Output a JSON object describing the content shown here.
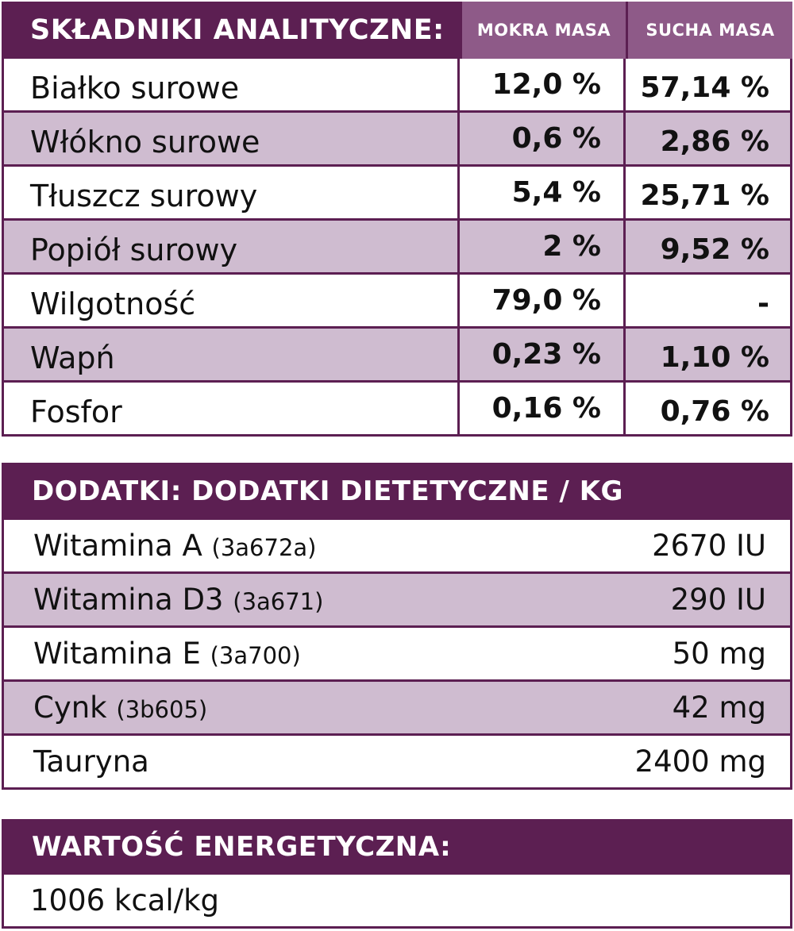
{
  "analytical": {
    "header": "SKŁADNIKI ANALITYCZNE:",
    "col_wet": "MOKRA MASA",
    "col_dry": "SUCHA MASA",
    "rows": [
      {
        "name": "Białko surowe",
        "wet": "12,0 %",
        "dry": "57,14 %"
      },
      {
        "name": "Włókno surowe",
        "wet": "0,6 %",
        "dry": "2,86 %"
      },
      {
        "name": "Tłuszcz surowy",
        "wet": "5,4 %",
        "dry": "25,71 %"
      },
      {
        "name": "Popiół surowy",
        "wet": "2 %",
        "dry": "9,52 %"
      },
      {
        "name": "Wilgotność",
        "wet": "79,0 %",
        "dry": "-"
      },
      {
        "name": "Wapń",
        "wet": "0,23 %",
        "dry": "1,10 %"
      },
      {
        "name": "Fosfor",
        "wet": "0,16 %",
        "dry": "0,76 %"
      }
    ]
  },
  "additives": {
    "header": "DODATKI: DODATKI DIETETYCZNE / KG",
    "rows": [
      {
        "name": "Witamina A",
        "code": "(3a672a)",
        "value": "2670 IU"
      },
      {
        "name": "Witamina D3",
        "code": "(3a671)",
        "value": "290 IU"
      },
      {
        "name": "Witamina E",
        "code": "(3a700)",
        "value": "50 mg"
      },
      {
        "name": "Cynk",
        "code": "(3b605)",
        "value": "42 mg"
      },
      {
        "name": "Tauryna",
        "code": "",
        "value": "2400 mg"
      }
    ]
  },
  "energy": {
    "header": "WARTOŚĆ ENERGETYCZNA:",
    "value": "1006 kcal/kg"
  },
  "colors": {
    "header_bg": "#5c1f52",
    "subheader_bg": "#8e5a88",
    "row_alt_bg": "#cfbcd0"
  }
}
